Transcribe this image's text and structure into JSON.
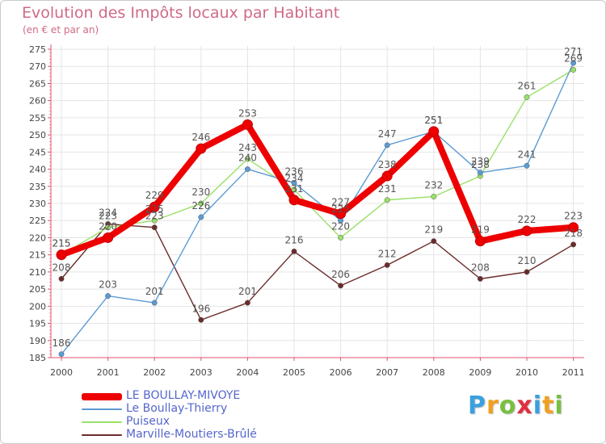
{
  "chart_data": {
    "type": "line",
    "title": "Evolution des Impôts locaux par Habitant",
    "subtitle": "(en € et par an)",
    "xlabel": "",
    "ylabel": "",
    "categories": [
      "2000",
      "2001",
      "2002",
      "2003",
      "2004",
      "2005",
      "2006",
      "2007",
      "2008",
      "2009",
      "2010",
      "2011"
    ],
    "ylim": [
      185,
      275
    ],
    "yticks": [
      185,
      190,
      195,
      200,
      205,
      210,
      215,
      220,
      225,
      230,
      235,
      240,
      245,
      250,
      255,
      260,
      265,
      270,
      275
    ],
    "grid": true,
    "legend_position": "bottom-left",
    "series": [
      {
        "name": "LE BOULLAY-MIVOYE",
        "color": "#ee0000",
        "values": [
          215,
          220,
          229,
          246,
          253,
          231,
          227,
          238,
          251,
          219,
          222,
          223
        ]
      },
      {
        "name": "Le Boullay-Thierry",
        "color": "#5b9bd5",
        "values": [
          186,
          203,
          201,
          226,
          240,
          236,
          225,
          247,
          251,
          239,
          241,
          271
        ]
      },
      {
        "name": "Puiseux",
        "color": "#99e066",
        "values": [
          215,
          223,
          225,
          230,
          243,
          234,
          220,
          231,
          232,
          238,
          261,
          269
        ]
      },
      {
        "name": "Marville-Moutiers-Brûlé",
        "color": "#6b2b2b",
        "values": [
          208,
          224,
          223,
          196,
          201,
          216,
          206,
          212,
          219,
          208,
          210,
          218
        ]
      }
    ]
  },
  "brand": {
    "letters": [
      "P",
      "r",
      "o",
      "x",
      "i",
      "t",
      "i"
    ],
    "colors": [
      "#3aa0e0",
      "#f0a020",
      "#78c040",
      "#e03040",
      "#3aa0e0",
      "#f0a020",
      "#78c040"
    ]
  }
}
